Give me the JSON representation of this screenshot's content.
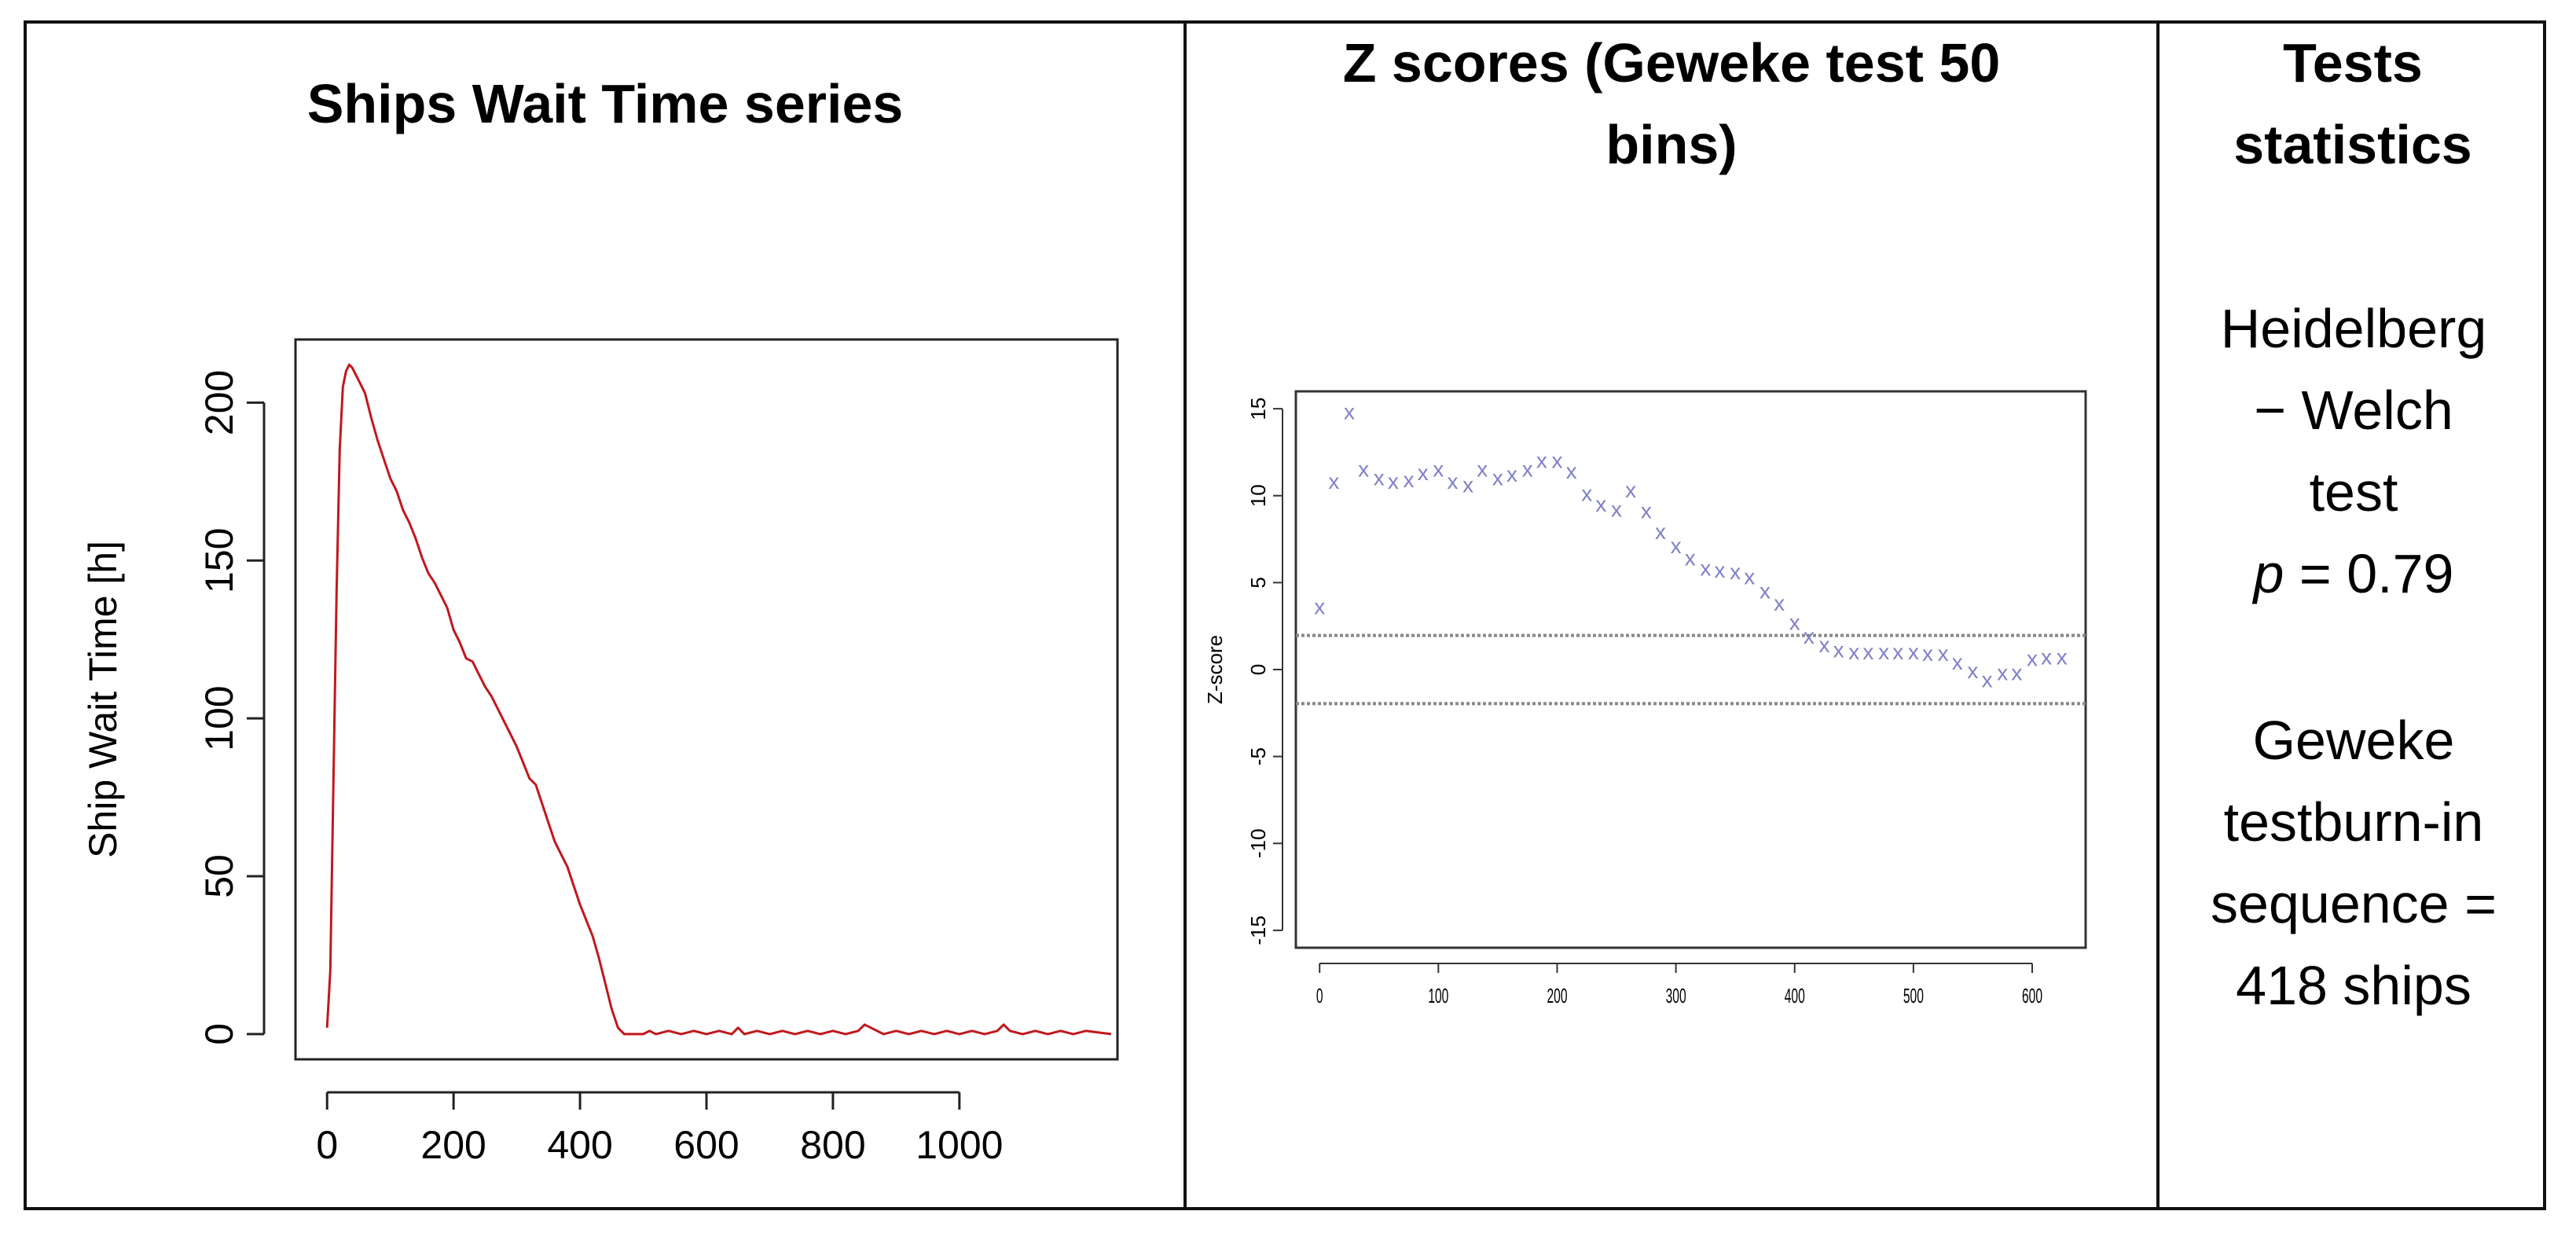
{
  "panels": {
    "left": {
      "title": "Ships Wait Time series"
    },
    "middle": {
      "title_line1": "Z scores (Geweke test 50",
      "title_line2": "bins)"
    },
    "right": {
      "title_line1": "Tests",
      "title_line2": "statistics",
      "hw_line1": "Heidelberg",
      "hw_line2": "− Welch",
      "hw_line3": "test",
      "p_symbol": "p",
      "p_value_text": "= 0.79",
      "gw_line1": "Geweke",
      "gw_line2": "testburn-in",
      "gw_line3": "sequence =",
      "gw_line4": "418 ships"
    }
  },
  "chart_data": [
    {
      "type": "line",
      "title": "",
      "xlabel": "",
      "ylabel": "Ship Wait Time [h]",
      "xlim": [
        -50,
        1250
      ],
      "ylim": [
        -8,
        220
      ],
      "xticks": [
        0,
        200,
        400,
        600,
        800,
        1000
      ],
      "yticks": [
        0,
        50,
        100,
        150,
        200
      ],
      "color": "#c0181d",
      "series": [
        {
          "x": [
            0,
            5,
            10,
            15,
            20,
            25,
            30,
            35,
            40,
            45,
            50,
            60,
            70,
            80,
            90,
            100,
            110,
            120,
            130,
            140,
            150,
            160,
            170,
            180,
            190,
            200,
            210,
            220,
            230,
            240,
            250,
            260,
            270,
            280,
            290,
            300,
            310,
            320,
            330,
            340,
            350,
            360,
            370,
            380,
            390,
            400,
            410,
            420,
            430,
            440,
            450,
            460,
            470,
            480,
            490,
            500,
            510,
            520,
            540,
            560,
            580,
            600,
            620,
            640,
            650,
            660,
            680,
            700,
            720,
            740,
            760,
            780,
            800,
            820,
            840,
            850,
            860,
            880,
            900,
            920,
            940,
            960,
            980,
            1000,
            1020,
            1040,
            1060,
            1070,
            1080,
            1100,
            1120,
            1140,
            1160,
            1180,
            1200,
            1240
          ],
          "y": [
            2,
            20,
            80,
            140,
            185,
            205,
            210,
            212,
            211,
            209,
            207,
            203,
            195,
            188,
            182,
            176,
            172,
            166,
            162,
            157,
            151,
            146,
            143,
            139,
            135,
            128,
            124,
            119,
            118,
            114,
            110,
            107,
            103,
            99,
            95,
            91,
            86,
            81,
            79,
            73,
            67,
            61,
            57,
            53,
            47,
            41,
            36,
            31,
            24,
            16,
            8,
            2,
            0,
            0,
            0,
            0,
            1,
            0,
            1,
            0,
            1,
            0,
            1,
            0,
            2,
            0,
            1,
            0,
            1,
            0,
            1,
            0,
            1,
            0,
            1,
            3,
            2,
            0,
            1,
            0,
            1,
            0,
            1,
            0,
            1,
            0,
            1,
            3,
            1,
            0,
            1,
            0,
            1,
            0,
            1,
            0
          ]
        }
      ]
    },
    {
      "type": "scatter",
      "title": "",
      "xlabel": "",
      "ylabel": "Z-score",
      "xlim": [
        -20,
        645
      ],
      "ylim": [
        -16,
        16
      ],
      "xticks": [
        0,
        100,
        200,
        300,
        400,
        500,
        600
      ],
      "yticks": [
        -15,
        -10,
        -5,
        0,
        5,
        10,
        15
      ],
      "reference_lines": [
        1.96,
        -1.96
      ],
      "marker": "x",
      "color": "#8080c8",
      "series": [
        {
          "x": [
            0,
            12,
            25,
            37,
            50,
            62,
            75,
            87,
            100,
            112,
            125,
            137,
            150,
            162,
            175,
            187,
            200,
            212,
            225,
            237,
            250,
            262,
            275,
            287,
            300,
            312,
            325,
            337,
            350,
            362,
            375,
            387,
            400,
            412,
            425,
            437,
            450,
            462,
            475,
            487,
            500,
            512,
            525,
            537,
            550,
            562,
            575,
            587,
            600,
            612,
            625
          ],
          "y": [
            3.6,
            10.8,
            14.8,
            11.5,
            11.0,
            10.8,
            10.9,
            11.3,
            11.5,
            10.8,
            10.6,
            11.5,
            11.0,
            11.2,
            11.5,
            12.0,
            12.0,
            11.4,
            10.1,
            9.5,
            9.2,
            10.3,
            9.1,
            7.9,
            7.1,
            6.4,
            5.8,
            5.7,
            5.6,
            5.3,
            4.5,
            3.8,
            2.7,
            1.9,
            1.4,
            1.1,
            1.0,
            1.0,
            1.0,
            1.0,
            1.0,
            0.9,
            0.9,
            0.4,
            -0.1,
            -0.6,
            -0.2,
            -0.2,
            0.6,
            0.7,
            0.7
          ]
        }
      ]
    }
  ]
}
